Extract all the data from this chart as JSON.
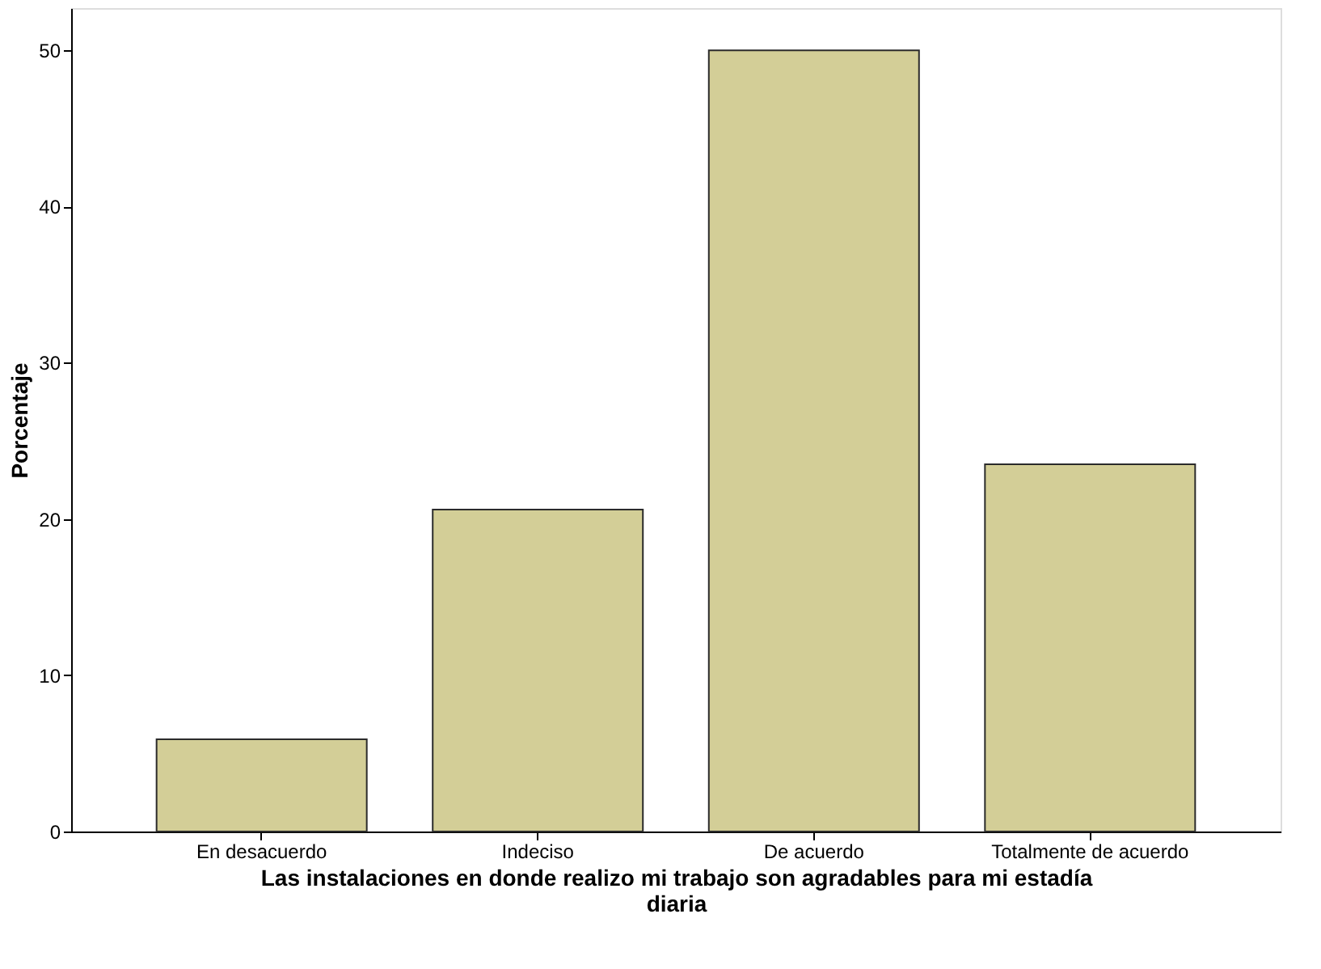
{
  "chart_data": {
    "type": "bar",
    "xlabel": "Las instalaciones en donde realizo mi trabajo son agradables para mi estadía diaria",
    "ylabel": "Porcentaje",
    "categories": [
      "En desacuerdo",
      "Indeciso",
      "De acuerdo",
      "Totalmente de acuerdo"
    ],
    "values": [
      5.9,
      20.6,
      50.0,
      23.5
    ],
    "color": "#d3ce97",
    "ylim": [
      0,
      52.7
    ],
    "yticks": [
      0,
      10,
      20,
      30,
      40,
      50
    ],
    "grid": false
  }
}
